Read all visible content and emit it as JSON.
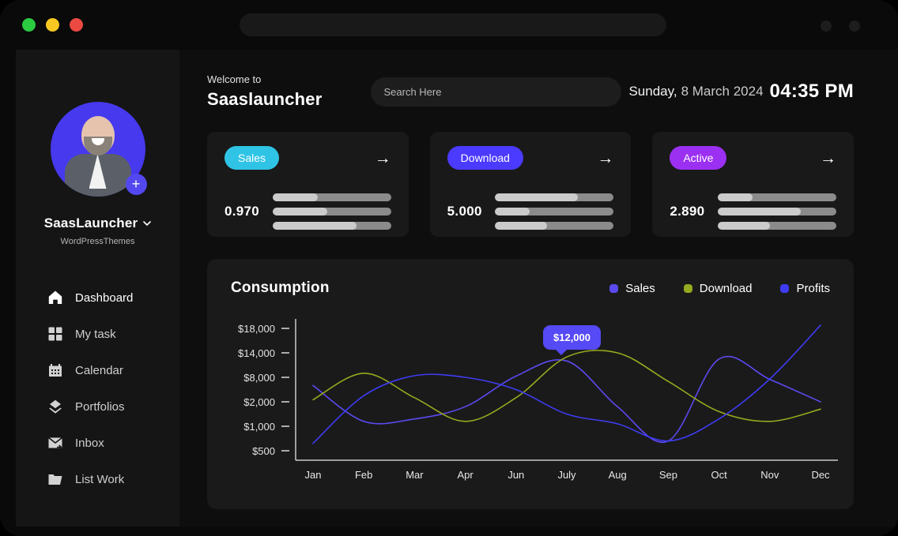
{
  "window": {
    "traffic_light_colors": [
      "#2bcb41",
      "#f8c822",
      "#ea4a41"
    ]
  },
  "sidebar": {
    "profile": {
      "name": "SaasLauncher",
      "subtitle": "WordPressThemes",
      "add_label": "+"
    },
    "nav": [
      {
        "label": "Dashboard",
        "icon": "home-icon",
        "active": true
      },
      {
        "label": "My task",
        "icon": "grid-icon",
        "active": false
      },
      {
        "label": "Calendar",
        "icon": "calendar-icon",
        "active": false
      },
      {
        "label": "Portfolios",
        "icon": "layers-icon",
        "active": false
      },
      {
        "label": "Inbox",
        "icon": "inbox-icon",
        "active": false
      },
      {
        "label": "List Work",
        "icon": "folder-icon",
        "active": false
      }
    ]
  },
  "header": {
    "welcome_small": "Welcome to",
    "app_name": "Saaslauncher",
    "search_placeholder": "Search Here",
    "date_day": "Sunday,",
    "date_rest": "8 March 2024",
    "time": "04:35 PM"
  },
  "cards": [
    {
      "badge": "Sales",
      "badge_color": "#2fc4e5",
      "value": "0.970",
      "arrow": "→",
      "bars": [
        38,
        46,
        71
      ]
    },
    {
      "badge": "Download",
      "badge_color": "#4b3aff",
      "value": "5.000",
      "arrow": "→",
      "bars": [
        70,
        29,
        44
      ]
    },
    {
      "badge": "Active",
      "badge_color": "#9b30f2",
      "value": "2.890",
      "arrow": "→",
      "bars": [
        29,
        70,
        44
      ]
    }
  ],
  "chart_data": {
    "type": "line",
    "title": "Consumption",
    "categories": [
      "Jan",
      "Feb",
      "Mar",
      "Apr",
      "Jun",
      "July",
      "Aug",
      "Sep",
      "Oct",
      "Nov",
      "Dec"
    ],
    "y_ticks": {
      "labels": [
        "$18,000",
        "$14,000",
        "$8,000",
        "$2,000",
        "$1,000",
        "$500"
      ],
      "values": [
        18000,
        14000,
        8000,
        2000,
        1000,
        500
      ]
    },
    "series": [
      {
        "name": "Sales",
        "color": "#5b4af0",
        "values": [
          6000,
          1200,
          1300,
          1800,
          8300,
          12000,
          1800,
          700,
          12500,
          7500,
          2000
        ]
      },
      {
        "name": "Download",
        "color": "#97a91f",
        "values": [
          2500,
          9000,
          3000,
          1200,
          3000,
          13000,
          14000,
          7000,
          1600,
          1200,
          1700
        ]
      },
      {
        "name": "Profits",
        "color": "#3e3cf2",
        "values": [
          650,
          3500,
          8400,
          8000,
          5000,
          1500,
          1100,
          700,
          1300,
          7600,
          18500
        ]
      }
    ],
    "tooltip": {
      "label": "$12,000",
      "series": "Sales",
      "category": "July"
    },
    "legend_position": "top-right",
    "grid": false,
    "axis_color": "#c9c9c9"
  }
}
